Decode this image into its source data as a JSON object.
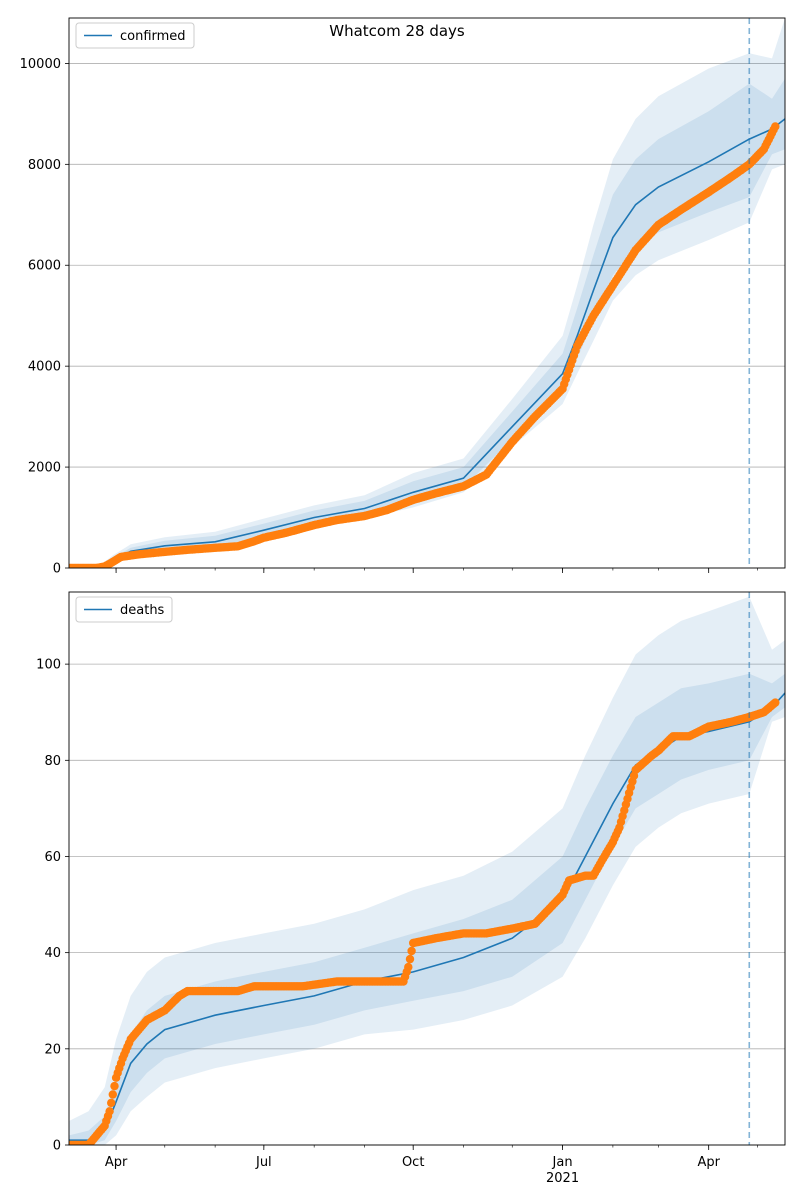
{
  "figure": {
    "suptitle": "Whatcom 28 days"
  },
  "x_axis": {
    "tick_labels": [
      "Apr",
      "Jul",
      "Oct",
      "Jan",
      "Apr"
    ],
    "tick_dates": [
      "2020-04-01",
      "2020-07-01",
      "2020-10-01",
      "2021-01-01",
      "2021-04-01"
    ],
    "year_label": "2021",
    "range": [
      "2020-03-03",
      "2021-05-18"
    ],
    "forecast_start": "2021-04-26"
  },
  "colors": {
    "model_line": "#1f77b4",
    "observed": "#ff7f0e",
    "band": "#1f77b4",
    "grid": "#b0b0b0",
    "forecast_marker": "#1f77b4"
  },
  "chart_data": [
    {
      "type": "line",
      "name": "confirmed",
      "legend": {
        "label": "confirmed",
        "placement": "top-left"
      },
      "y_ticks": [
        0,
        2000,
        4000,
        6000,
        8000,
        10000
      ],
      "ylim": [
        0,
        10900
      ],
      "grid": "horizontal",
      "model": {
        "x": [
          "2020-03-03",
          "2020-03-15",
          "2020-03-22",
          "2020-03-30",
          "2020-04-10",
          "2020-05-01",
          "2020-06-01",
          "2020-07-01",
          "2020-08-01",
          "2020-09-01",
          "2020-10-01",
          "2020-11-01",
          "2020-12-01",
          "2021-01-01",
          "2021-01-10",
          "2021-01-20",
          "2021-02-01",
          "2021-02-15",
          "2021-03-01",
          "2021-04-01",
          "2021-04-26",
          "2021-05-10",
          "2021-05-18"
        ],
        "y": [
          0,
          0,
          0,
          150,
          330,
          440,
          520,
          750,
          1000,
          1180,
          1500,
          1780,
          2800,
          3850,
          4600,
          5500,
          6550,
          7200,
          7550,
          8050,
          8500,
          8700,
          8900
        ],
        "bands": [
          {
            "lower": [
              0,
              0,
              0,
              100,
              250,
              330,
              410,
              640,
              880,
              1060,
              1320,
              1600,
              2550,
              3500,
              4150,
              4900,
              5800,
              6350,
              6650,
              7050,
              7350,
              8200,
              8300
            ],
            "upper": [
              0,
              0,
              30,
              200,
              400,
              540,
              640,
              880,
              1140,
              1330,
              1720,
              2000,
              3100,
              4250,
              5150,
              6200,
              7400,
              8100,
              8500,
              9050,
              9600,
              9300,
              9700
            ]
          },
          {
            "lower": [
              0,
              0,
              0,
              70,
              200,
              270,
              350,
              570,
              800,
              980,
              1200,
              1500,
              2400,
              3250,
              3850,
              4500,
              5300,
              5800,
              6100,
              6500,
              6850,
              7900,
              8000
            ],
            "upper": [
              0,
              10,
              50,
              250,
              470,
              610,
              720,
              980,
              1240,
              1440,
              1880,
              2170,
              3350,
              4600,
              5600,
              6800,
              8100,
              8900,
              9350,
              9900,
              10200,
              10100,
              10900
            ]
          }
        ]
      },
      "observed": {
        "x": [
          "2020-03-03",
          "2020-03-20",
          "2020-03-25",
          "2020-03-30",
          "2020-04-04",
          "2020-04-15",
          "2020-05-01",
          "2020-05-15",
          "2020-06-01",
          "2020-06-15",
          "2020-06-25",
          "2020-07-01",
          "2020-07-15",
          "2020-08-01",
          "2020-08-15",
          "2020-09-01",
          "2020-09-15",
          "2020-10-01",
          "2020-10-15",
          "2020-11-01",
          "2020-11-15",
          "2020-12-01",
          "2020-12-15",
          "2021-01-01",
          "2021-01-10",
          "2021-01-20",
          "2021-02-01",
          "2021-02-15",
          "2021-03-01",
          "2021-03-15",
          "2021-04-01",
          "2021-04-15",
          "2021-04-26",
          "2021-05-05",
          "2021-05-12"
        ],
        "y": [
          0,
          0,
          30,
          120,
          220,
          270,
          320,
          360,
          400,
          430,
          530,
          600,
          700,
          850,
          950,
          1030,
          1150,
          1350,
          1480,
          1620,
          1850,
          2500,
          3000,
          3550,
          4400,
          5000,
          5600,
          6300,
          6800,
          7100,
          7450,
          7750,
          8000,
          8300,
          8750
        ]
      }
    },
    {
      "type": "line",
      "name": "deaths",
      "legend": {
        "label": "deaths",
        "placement": "top-left"
      },
      "y_ticks": [
        0,
        20,
        40,
        60,
        80,
        100
      ],
      "ylim": [
        0,
        115
      ],
      "grid": "horizontal",
      "model": {
        "x": [
          "2020-03-03",
          "2020-03-15",
          "2020-03-25",
          "2020-04-01",
          "2020-04-10",
          "2020-04-20",
          "2020-05-01",
          "2020-06-01",
          "2020-07-01",
          "2020-08-01",
          "2020-09-01",
          "2020-10-01",
          "2020-11-01",
          "2020-12-01",
          "2021-01-01",
          "2021-01-15",
          "2021-02-01",
          "2021-02-15",
          "2021-03-01",
          "2021-03-15",
          "2021-04-01",
          "2021-04-26",
          "2021-05-10",
          "2021-05-18"
        ],
        "y": [
          1,
          1,
          3,
          9,
          17,
          21,
          24,
          27,
          29,
          31,
          34,
          36,
          39,
          43,
          51,
          60,
          71,
          79,
          82,
          85,
          86,
          88,
          91,
          94
        ],
        "bands": [
          {
            "lower": [
              0,
              0,
              1,
              5,
              11,
              15,
              18,
              21,
              23,
              25,
              28,
              30,
              32,
              35,
              42,
              51,
              62,
              70,
              73,
              76,
              78,
              80,
              89,
              91
            ],
            "upper": [
              2,
              3,
              6,
              14,
              23,
              28,
              31,
              34,
              36,
              38,
              41,
              44,
              47,
              51,
              60,
              70,
              81,
              89,
              92,
              95,
              96,
              98,
              96,
              98
            ]
          },
          {
            "lower": [
              0,
              0,
              0,
              2,
              7,
              10,
              13,
              16,
              18,
              20,
              23,
              24,
              26,
              29,
              35,
              43,
              54,
              62,
              66,
              69,
              71,
              73,
              88,
              89
            ],
            "upper": [
              5,
              7,
              12,
              22,
              31,
              36,
              39,
              42,
              44,
              46,
              49,
              53,
              56,
              61,
              70,
              81,
              93,
              102,
              106,
              109,
              111,
              114,
              103,
              105
            ]
          }
        ]
      },
      "observed": {
        "x": [
          "2020-03-03",
          "2020-03-15",
          "2020-03-20",
          "2020-03-25",
          "2020-03-28",
          "2020-04-01",
          "2020-04-05",
          "2020-04-10",
          "2020-04-15",
          "2020-04-20",
          "2020-05-01",
          "2020-05-10",
          "2020-05-15",
          "2020-05-25",
          "2020-06-15",
          "2020-06-25",
          "2020-07-15",
          "2020-07-25",
          "2020-08-15",
          "2020-09-01",
          "2020-09-25",
          "2020-09-28",
          "2020-10-01",
          "2020-10-15",
          "2020-11-01",
          "2020-11-15",
          "2020-12-01",
          "2020-12-15",
          "2021-01-01",
          "2021-01-05",
          "2021-01-15",
          "2021-01-20",
          "2021-01-25",
          "2021-02-01",
          "2021-02-05",
          "2021-02-10",
          "2021-02-15",
          "2021-02-25",
          "2021-03-01",
          "2021-03-10",
          "2021-03-20",
          "2021-04-01",
          "2021-04-15",
          "2021-04-26",
          "2021-05-05",
          "2021-05-12"
        ],
        "y": [
          0,
          0,
          2,
          4,
          7,
          14,
          18,
          22,
          24,
          26,
          28,
          31,
          32,
          32,
          32,
          33,
          33,
          33,
          34,
          34,
          34,
          37,
          42,
          43,
          44,
          44,
          45,
          46,
          52,
          55,
          56,
          56,
          59,
          63,
          66,
          72,
          78,
          81,
          82,
          85,
          85,
          87,
          88,
          89,
          90,
          92
        ]
      }
    }
  ]
}
